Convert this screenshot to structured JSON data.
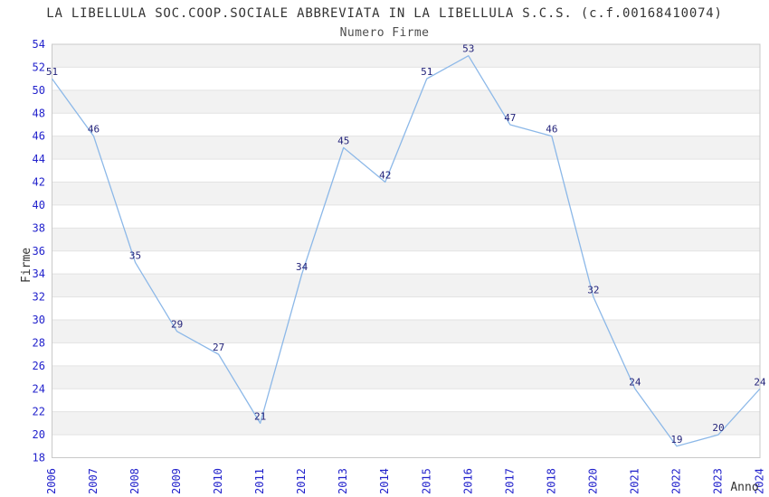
{
  "chart_data": {
    "type": "line",
    "title": "LA LIBELLULA SOC.COOP.SOCIALE ABBREVIATA IN LA LIBELLULA S.C.S. (c.f.00168410074)",
    "subtitle": "Numero Firme",
    "xlabel": "Anno",
    "ylabel": "Firme",
    "categories": [
      "2006",
      "2007",
      "2008",
      "2009",
      "2010",
      "2011",
      "2012",
      "2013",
      "2014",
      "2015",
      "2016",
      "2017",
      "2018",
      "2020",
      "2021",
      "2022",
      "2023",
      "2024"
    ],
    "values": [
      51,
      46,
      35,
      29,
      27,
      21,
      34,
      45,
      42,
      51,
      53,
      47,
      46,
      32,
      24,
      19,
      20,
      24
    ],
    "ylim": [
      18,
      54
    ],
    "yticks": [
      54,
      52,
      50,
      48,
      46,
      44,
      42,
      40,
      38,
      36,
      34,
      32,
      30,
      28,
      26,
      24,
      22,
      20,
      18
    ],
    "grid": true,
    "legend": false,
    "band_shading": true,
    "data_labels_shown": true,
    "colors": {
      "line": "#8cb8e8",
      "tick_label": "#2222cc",
      "data_label": "#23237a",
      "band": "#f2f2f2",
      "gridline": "#e3e3e3",
      "border": "#c9c9c9",
      "title": "#333333",
      "axis_label": "#333333"
    }
  }
}
